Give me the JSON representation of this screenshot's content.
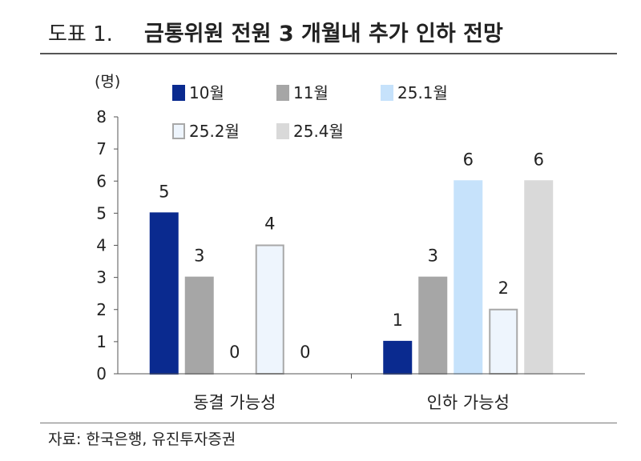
{
  "figure": {
    "label": "도표 1.",
    "title": "금통위원 전원 3 개월내 추가 인하 전망",
    "source": "자료: 한국은행, 유진투자증권"
  },
  "chart_data": {
    "type": "bar",
    "title": "금통위원 전원 3 개월내 추가 인하 전망",
    "ylabel": "(명)",
    "xlabel": "",
    "ylim": [
      0,
      8
    ],
    "yticks": [
      0,
      1,
      2,
      3,
      4,
      5,
      6,
      7,
      8
    ],
    "categories": [
      "동결 가능성",
      "인하 가능성"
    ],
    "series": [
      {
        "name": "10월",
        "values": [
          5,
          1
        ],
        "color": "#0a2a8f",
        "stroke": "#0a2a8f"
      },
      {
        "name": "11월",
        "values": [
          3,
          3
        ],
        "color": "#a6a6a6",
        "stroke": "#a6a6a6"
      },
      {
        "name": "25.1월",
        "values": [
          0,
          6
        ],
        "color": "#c6e2fb",
        "stroke": "#c6e2fb"
      },
      {
        "name": "25.2월",
        "values": [
          4,
          2
        ],
        "color": "#eef5fd",
        "stroke": "#a8a8a8"
      },
      {
        "name": "25.4월",
        "values": [
          0,
          6
        ],
        "color": "#d9d9d9",
        "stroke": "#d9d9d9"
      }
    ],
    "data_labels": true,
    "grid": false,
    "legend": "top"
  }
}
